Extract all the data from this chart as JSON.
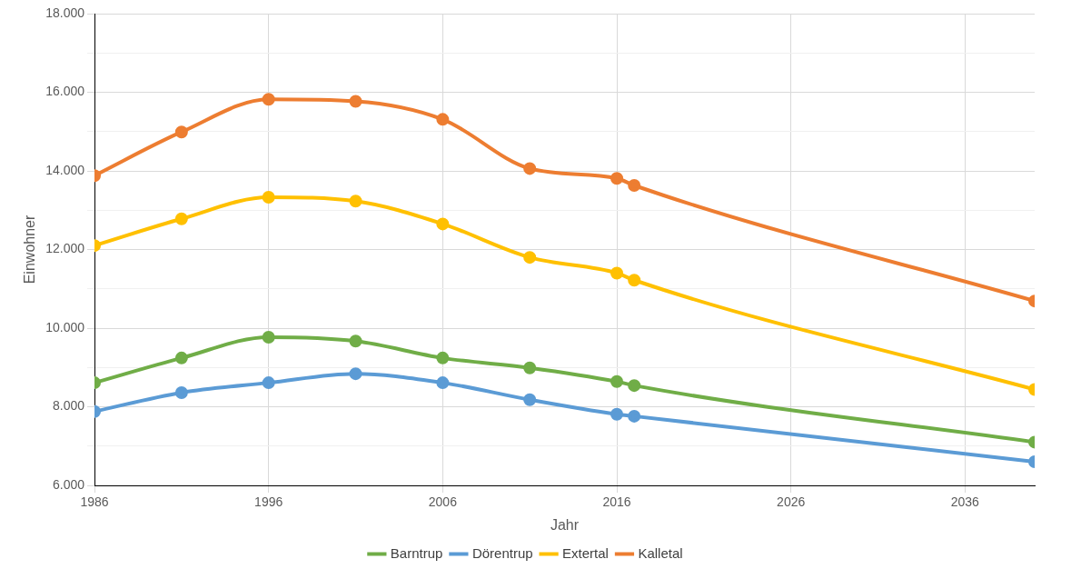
{
  "chart_data": {
    "type": "line",
    "xlabel": "Jahr",
    "ylabel": "Einwohner",
    "xlim": [
      1986,
      2040
    ],
    "xticks": [
      1986,
      1996,
      2006,
      2016,
      2026,
      2036
    ],
    "ylim": [
      6000,
      18000
    ],
    "yticks": [
      {
        "value": 6000,
        "label": "6.000"
      },
      {
        "value": 7000,
        "label": null
      },
      {
        "value": 8000,
        "label": "8.000"
      },
      {
        "value": 9000,
        "label": null
      },
      {
        "value": 10000,
        "label": "10.000"
      },
      {
        "value": 11000,
        "label": null
      },
      {
        "value": 12000,
        "label": "12.000"
      },
      {
        "value": 13000,
        "label": null
      },
      {
        "value": 14000,
        "label": "14.000"
      },
      {
        "value": 15000,
        "label": null
      },
      {
        "value": 16000,
        "label": "16.000"
      },
      {
        "value": 17000,
        "label": null
      },
      {
        "value": 18000,
        "label": "18.000"
      }
    ],
    "x": [
      1986,
      1991,
      1996,
      2001,
      2006,
      2011,
      2016,
      2017,
      2040
    ],
    "grid": true,
    "legend": "bottom",
    "marker": "circle",
    "line_style": "solid",
    "series": [
      {
        "name": "Barntrup",
        "color": "#70ad47",
        "values": [
          8610,
          9240,
          9770,
          9670,
          9240,
          8990,
          8640,
          8540,
          7100
        ]
      },
      {
        "name": "Dörentrup",
        "color": "#5b9bd5",
        "values": [
          7880,
          8360,
          8610,
          8840,
          8610,
          8180,
          7810,
          7760,
          6600
        ]
      },
      {
        "name": "Extertal",
        "color": "#ffc000",
        "values": [
          12100,
          12780,
          13330,
          13230,
          12650,
          11800,
          11400,
          11220,
          8440
        ]
      },
      {
        "name": "Kalletal",
        "color": "#ed7d31",
        "values": [
          13880,
          14990,
          15820,
          15770,
          15310,
          14060,
          13810,
          13630,
          10690
        ]
      }
    ]
  }
}
